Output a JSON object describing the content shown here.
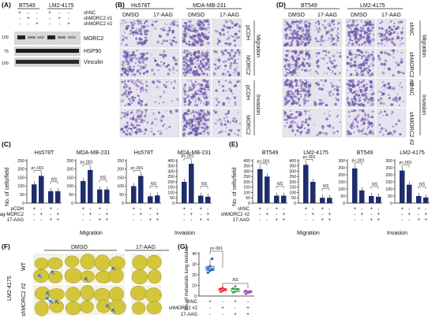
{
  "colors": {
    "bar": "#1f2d6b",
    "stain": "#6b5aa8",
    "field": "#e7e3ef",
    "lung": "#d3c63a",
    "met_arrow": "#3e74c9"
  },
  "panelA": {
    "label": "(A)",
    "cells": [
      "BT549",
      "LM2-4175"
    ],
    "rows": [
      {
        "name": "shNC",
        "signs": [
          "+",
          "-",
          "-",
          "+",
          "-",
          "-"
        ]
      },
      {
        "name": "shMORC2 #1",
        "signs": [
          "-",
          "+",
          "-",
          "-",
          "+",
          "-"
        ]
      },
      {
        "name": "shMORC2 #2",
        "signs": [
          "-",
          "-",
          "+",
          "-",
          "-",
          "+"
        ]
      }
    ],
    "markers": [
      "100",
      "75",
      "100"
    ],
    "proteins": [
      "MORC2",
      "HSP90",
      "Vinculin"
    ]
  },
  "panelB": {
    "label": "(B)",
    "cells": [
      "Hs578T",
      "MDA-MB-231"
    ],
    "treatments": [
      "DMSO",
      "17-AAG",
      "DMSO",
      "17-AAG"
    ],
    "row_labels": [
      "pCDH",
      "MORC2",
      "pCDH",
      "MORC2"
    ],
    "group_labels": [
      "Migration",
      "Invasion"
    ]
  },
  "panelC": {
    "label": "(C)",
    "ylabel": "No. of cells/field",
    "yticks": [
      "0",
      "50",
      "100",
      "150",
      "200",
      "250"
    ],
    "cond_rows": [
      "pCDH",
      "Flag-MORC2",
      "17-AAG"
    ],
    "signs": [
      [
        "+",
        "-",
        "+",
        "-"
      ],
      [
        "-",
        "+",
        "-",
        "+"
      ],
      [
        "-",
        "-",
        "+",
        "+"
      ]
    ],
    "group_labels": [
      "Migration",
      "Invasion"
    ]
  },
  "panelD": {
    "label": "(D)",
    "cells": [
      "BT549",
      "LM2-4175"
    ],
    "treatments": [
      "DMSO",
      "17-AAG",
      "DMSO",
      "17-AAG"
    ],
    "row_labels": [
      "shNC",
      "shMORC2 #2",
      "shNC",
      "shMORC2 #2"
    ],
    "group_labels": [
      "Migration",
      "Invasion"
    ]
  },
  "panelE": {
    "label": "(E)",
    "ylabel": "No. of cells/field",
    "yticks": [
      "0",
      "50",
      "100",
      "150",
      "200",
      "250",
      "300",
      "350",
      "400"
    ],
    "cond_rows": [
      "shNC",
      "shMORC2 #2",
      "17-AAG"
    ],
    "signs": [
      [
        "+",
        "-",
        "+",
        "-"
      ],
      [
        "-",
        "+",
        "-",
        "+"
      ],
      [
        "-",
        "-",
        "+",
        "+"
      ]
    ],
    "group_labels": [
      "Migration",
      "Invasion"
    ]
  },
  "panelF": {
    "label": "(F)",
    "cell_line": "LM2-4175",
    "treatments": [
      "DMSO",
      "17-AAG"
    ],
    "row_labels": [
      "WT",
      "shMORC2 #2"
    ],
    "met_counts": [
      [
        2,
        4
      ],
      [
        1,
        0
      ],
      [
        1,
        2
      ],
      [
        0,
        0
      ]
    ]
  },
  "panelG": {
    "label": "(G)",
    "ylabel": "No. of metastatic lung nodules",
    "yticks": [
      "0",
      "10",
      "20",
      "30",
      "40"
    ],
    "cond_rows": [
      "shNC",
      "shMORC2 #2",
      "17-AAG"
    ],
    "signs": [
      [
        "+",
        "-",
        "+",
        "-"
      ],
      [
        "-",
        "+",
        "-",
        "+"
      ],
      [
        "-",
        "-",
        "+",
        "+"
      ]
    ],
    "sig": [
      "p<.001",
      "NS"
    ],
    "colors": [
      "#1f5fb4",
      "#e2202a",
      "#1f9a3a",
      "#9b3fb5"
    ]
  },
  "chart_data": [
    {
      "type": "bar",
      "panel": "C",
      "title": "Hs578T",
      "group": "Migration",
      "ylim": [
        0,
        250
      ],
      "categories": [
        "pCDH",
        "Flag-MORC2",
        "pCDH + 17-AAG",
        "Flag-MORC2 + 17-AAG"
      ],
      "values": [
        110,
        160,
        70,
        70
      ],
      "annotations": [
        "p<.001",
        "NS"
      ]
    },
    {
      "type": "bar",
      "panel": "C",
      "title": "MDA-MB-231",
      "group": "Migration",
      "ylim": [
        0,
        250
      ],
      "categories": [
        "pCDH",
        "Flag-MORC2",
        "pCDH + 17-AAG",
        "Flag-MORC2 + 17-AAG"
      ],
      "values": [
        130,
        195,
        80,
        80
      ],
      "annotations": [
        "p<.001",
        "NS"
      ]
    },
    {
      "type": "bar",
      "panel": "C",
      "title": "Hs578T",
      "group": "Invasion",
      "ylim": [
        0,
        250
      ],
      "categories": [
        "pCDH",
        "Flag-MORC2",
        "pCDH + 17-AAG",
        "Flag-MORC2 + 17-AAG"
      ],
      "values": [
        100,
        160,
        40,
        45
      ],
      "annotations": [
        "p<.001",
        "NS"
      ]
    },
    {
      "type": "bar",
      "panel": "C",
      "title": "MDA-MB-231",
      "group": "Invasion",
      "ylim": [
        0,
        400
      ],
      "categories": [
        "pCDH",
        "Flag-MORC2",
        "pCDH + 17-AAG",
        "Flag-MORC2 + 17-AAG"
      ],
      "values": [
        200,
        370,
        70,
        60
      ],
      "annotations": [
        "p<.001",
        "NS"
      ]
    },
    {
      "type": "bar",
      "panel": "E",
      "title": "BT549",
      "group": "Migration",
      "ylim": [
        0,
        400
      ],
      "categories": [
        "shNC",
        "shMORC2 #2",
        "shNC + 17-AAG",
        "shMORC2 #2 + 17-AAG"
      ],
      "values": [
        320,
        250,
        70,
        70
      ],
      "annotations": [
        "p<.001",
        "NS"
      ]
    },
    {
      "type": "bar",
      "panel": "E",
      "title": "LM2-4175",
      "group": "Migration",
      "ylim": [
        0,
        400
      ],
      "categories": [
        "shNC",
        "shMORC2 #2",
        "shNC + 17-AAG",
        "shMORC2 #2 + 17-AAG"
      ],
      "values": [
        360,
        200,
        50,
        50
      ],
      "annotations": [
        "p<.001",
        "NS"
      ]
    },
    {
      "type": "bar",
      "panel": "E",
      "title": "BT549",
      "group": "Invasion",
      "ylim": [
        0,
        300
      ],
      "categories": [
        "shNC",
        "shMORC2 #2",
        "shNC + 17-AAG",
        "shMORC2 #2 + 17-AAG"
      ],
      "values": [
        245,
        90,
        50,
        45
      ],
      "annotations": [
        "p<.001",
        "NS"
      ]
    },
    {
      "type": "bar",
      "panel": "E",
      "title": "LM2-4175",
      "group": "Invasion",
      "ylim": [
        0,
        300
      ],
      "categories": [
        "shNC",
        "shMORC2 #2",
        "shNC + 17-AAG",
        "shMORC2 #2 + 17-AAG"
      ],
      "values": [
        230,
        130,
        50,
        40
      ],
      "annotations": [
        "p<.001",
        "NS"
      ]
    },
    {
      "type": "scatter",
      "panel": "G",
      "ylabel": "No. of metastatic lung nodules",
      "ylim": [
        0,
        40
      ],
      "categories": [
        "shNC",
        "shMORC2 #2",
        "shNC + 17-AAG",
        "shMORC2 #2 + 17-AAG"
      ],
      "points": [
        [
          22,
          24,
          25,
          26,
          28,
          35
        ],
        [
          4,
          5,
          6,
          7,
          8
        ],
        [
          3,
          4,
          6,
          7,
          9
        ],
        [
          2,
          3,
          4,
          5
        ]
      ],
      "annotations": [
        "p<.001",
        "NS"
      ]
    }
  ]
}
